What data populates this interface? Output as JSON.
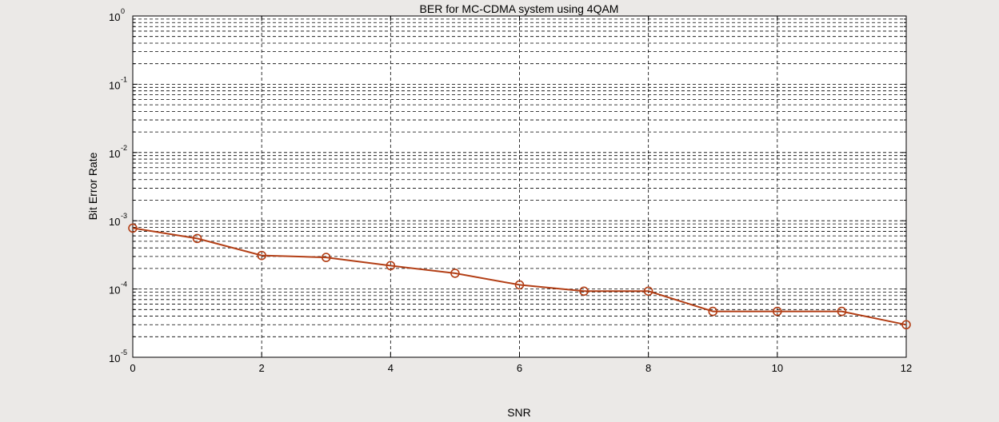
{
  "figure": {
    "background": "#ebe9e7",
    "axes_background": "#ffffff"
  },
  "chart_data": {
    "type": "line",
    "title": "BER for MC-CDMA system using 4QAM",
    "xlabel": "SNR",
    "ylabel": "Bit Error Rate",
    "xlim": [
      0,
      12
    ],
    "ylim": [
      1e-05,
      1
    ],
    "y_scale": "log",
    "grid": true,
    "x_ticks": [
      0,
      2,
      4,
      6,
      8,
      10,
      12
    ],
    "x_tick_labels": [
      "0",
      "2",
      "4",
      "6",
      "8",
      "10",
      "12"
    ],
    "y_ticks": [
      {
        "value": 1e-05,
        "base": "10",
        "exp": "-5"
      },
      {
        "value": 0.0001,
        "base": "10",
        "exp": "-4"
      },
      {
        "value": 0.001,
        "base": "10",
        "exp": "-3"
      },
      {
        "value": 0.01,
        "base": "10",
        "exp": "-2"
      },
      {
        "value": 0.1,
        "base": "10",
        "exp": "-1"
      },
      {
        "value": 1,
        "base": "10",
        "exp": "0"
      }
    ],
    "series": [
      {
        "color": "#b33f16",
        "marker": "circle",
        "x": [
          0,
          1,
          2,
          3,
          4,
          5,
          6,
          7,
          8,
          9,
          10,
          11,
          12
        ],
        "y": [
          0.00078,
          0.00055,
          0.00031,
          0.00029,
          0.00022,
          0.00017,
          0.000115,
          9.3e-05,
          9.3e-05,
          4.7e-05,
          4.7e-05,
          4.7e-05,
          3e-05
        ]
      }
    ]
  }
}
